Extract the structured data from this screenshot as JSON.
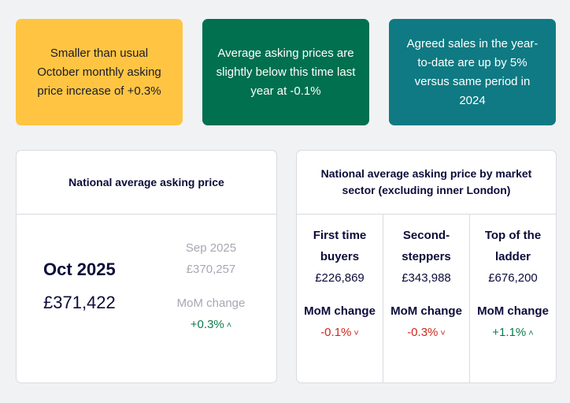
{
  "highlights": [
    {
      "text": "Smaller than usual October monthly asking price increase of +0.3%",
      "color": "#ffc542"
    },
    {
      "text": "Average asking prices are slightly below this time last year at -0.1%",
      "color": "#00704f"
    },
    {
      "text": "Agreed sales in the year-to-date are up by 5% versus same period in 2024",
      "color": "#0f7a83"
    }
  ],
  "national": {
    "title": "National average asking price",
    "current_month": "Oct 2025",
    "current_price": "£371,422",
    "prev_month": "Sep 2025",
    "prev_price": "£370,257",
    "mom_label": "MoM change",
    "mom_value": "+0.3%",
    "mom_direction": "up"
  },
  "sector": {
    "title": "National average asking price by market sector (excluding inner London)",
    "columns": [
      {
        "name": "First time buyers",
        "price": "£226,869",
        "mom_label": "MoM change",
        "mom_value": "-0.1%",
        "direction": "down"
      },
      {
        "name": "Second-steppers",
        "price": "£343,988",
        "mom_label": "MoM change",
        "mom_value": "-0.3%",
        "direction": "down"
      },
      {
        "name": "Top of the ladder",
        "price": "£676,200",
        "mom_label": "MoM change",
        "mom_value": "+1.1%",
        "direction": "up"
      }
    ]
  },
  "icons": {
    "up": "chevron-up-icon",
    "down": "chevron-down-icon"
  }
}
